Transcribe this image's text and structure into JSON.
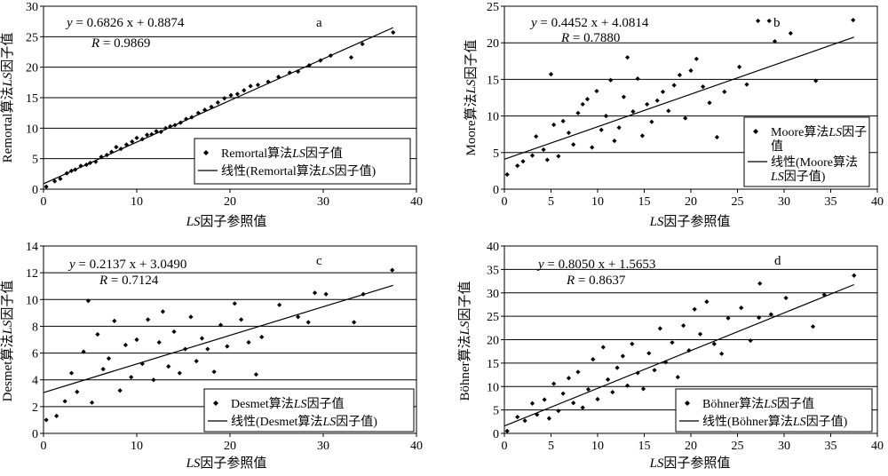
{
  "chart_data": [
    {
      "id": "a",
      "type": "scatter",
      "panel_label": "a",
      "equation_y": "y",
      "equation_rest": " = 0.6826 x + 0.8874",
      "r_label": "R",
      "r_rest": " = 0.9869",
      "xlabel_italic": "LS",
      "xlabel_rest": "因子参照值",
      "ylabel_pre": "Remortal算法",
      "ylabel_italic": "LS",
      "ylabel_post": "因子值",
      "xlim": [
        0,
        40
      ],
      "ylim": [
        0,
        30
      ],
      "xticks": [
        "0",
        "10",
        "20",
        "30",
        "40"
      ],
      "yticks": [
        "0",
        "5",
        "10",
        "15",
        "20",
        "25",
        "30"
      ],
      "legend_marker_pre": "Remortal算法",
      "legend_marker_italic": "LS",
      "legend_marker_post": "因子值",
      "legend_line_pre": "线性(Remortal算法",
      "legend_line_italic": "LS",
      "legend_line_post": "因子值)",
      "trend": {
        "slope": 0.6826,
        "intercept": 0.8874,
        "x": [
          0,
          37.5
        ]
      },
      "points": [
        [
          0.3,
          0.4
        ],
        [
          1.2,
          1.3
        ],
        [
          1.8,
          1.7
        ],
        [
          2.5,
          2.6
        ],
        [
          3.0,
          3.0
        ],
        [
          3.4,
          3.2
        ],
        [
          4.0,
          3.8
        ],
        [
          4.6,
          4.0
        ],
        [
          5.0,
          4.3
        ],
        [
          5.6,
          4.5
        ],
        [
          6.2,
          5.3
        ],
        [
          6.8,
          5.6
        ],
        [
          7.3,
          6.1
        ],
        [
          7.8,
          6.9
        ],
        [
          8.3,
          6.6
        ],
        [
          8.9,
          7.3
        ],
        [
          9.5,
          7.8
        ],
        [
          10.0,
          8.4
        ],
        [
          10.6,
          8.2
        ],
        [
          11.1,
          8.9
        ],
        [
          11.6,
          9.0
        ],
        [
          12.1,
          9.5
        ],
        [
          12.6,
          9.4
        ],
        [
          13.1,
          10.0
        ],
        [
          13.6,
          10.3
        ],
        [
          14.1,
          10.5
        ],
        [
          14.7,
          10.9
        ],
        [
          15.3,
          11.5
        ],
        [
          15.9,
          11.8
        ],
        [
          16.6,
          12.5
        ],
        [
          17.3,
          13.0
        ],
        [
          18.0,
          13.5
        ],
        [
          18.7,
          14.2
        ],
        [
          19.4,
          14.9
        ],
        [
          20.1,
          15.4
        ],
        [
          20.8,
          15.6
        ],
        [
          21.5,
          16.2
        ],
        [
          22.2,
          16.9
        ],
        [
          23.0,
          17.1
        ],
        [
          24.1,
          17.6
        ],
        [
          25.2,
          18.4
        ],
        [
          26.4,
          19.1
        ],
        [
          27.3,
          19.3
        ],
        [
          28.5,
          20.3
        ],
        [
          29.7,
          21.1
        ],
        [
          30.8,
          21.9
        ],
        [
          33.0,
          21.6
        ],
        [
          34.2,
          23.8
        ],
        [
          37.5,
          25.7
        ]
      ]
    },
    {
      "id": "b",
      "type": "scatter",
      "panel_label": "b",
      "equation_y": "y",
      "equation_rest": " = 0.4452 x + 4.0814",
      "r_label": "R",
      "r_rest": " = 0.7880",
      "xlabel_italic": "LS",
      "xlabel_rest": "因子参照值",
      "ylabel_pre": "Moore算法",
      "ylabel_italic": "LS",
      "ylabel_post": "因子值",
      "xlim": [
        0,
        40
      ],
      "ylim": [
        0,
        25
      ],
      "xticks": [
        "0",
        "5",
        "10",
        "15",
        "20",
        "25",
        "30",
        "35",
        "40"
      ],
      "yticks": [
        "0",
        "5",
        "10",
        "15",
        "20",
        "25"
      ],
      "legend_marker_pre": "Moore算法",
      "legend_marker_italic": "LS",
      "legend_marker_post": "因子",
      "legend_marker_line2": "值",
      "legend_line_pre": "线性(Moore算法",
      "legend_line_italic": "LS",
      "legend_line_post": "因子值)",
      "trend": {
        "slope": 0.4452,
        "intercept": 4.0814,
        "x": [
          0,
          37.5
        ]
      },
      "points": [
        [
          0.3,
          2.0
        ],
        [
          1.4,
          3.2
        ],
        [
          2.0,
          3.8
        ],
        [
          3.0,
          4.6
        ],
        [
          3.4,
          7.2
        ],
        [
          4.2,
          5.4
        ],
        [
          4.6,
          4.0
        ],
        [
          5.0,
          15.7
        ],
        [
          5.3,
          8.8
        ],
        [
          5.8,
          4.5
        ],
        [
          6.3,
          9.3
        ],
        [
          6.9,
          7.7
        ],
        [
          7.4,
          6.1
        ],
        [
          7.9,
          10.4
        ],
        [
          8.4,
          11.6
        ],
        [
          8.9,
          12.3
        ],
        [
          9.4,
          5.7
        ],
        [
          9.9,
          13.4
        ],
        [
          10.4,
          8.1
        ],
        [
          10.9,
          10.0
        ],
        [
          11.4,
          14.9
        ],
        [
          11.8,
          6.6
        ],
        [
          12.3,
          8.4
        ],
        [
          12.8,
          12.6
        ],
        [
          13.2,
          18.0
        ],
        [
          13.8,
          10.6
        ],
        [
          14.3,
          15.1
        ],
        [
          14.8,
          7.3
        ],
        [
          15.3,
          11.6
        ],
        [
          15.8,
          9.2
        ],
        [
          16.4,
          12.1
        ],
        [
          17.0,
          13.3
        ],
        [
          17.6,
          10.7
        ],
        [
          18.2,
          14.2
        ],
        [
          18.8,
          15.6
        ],
        [
          19.4,
          9.7
        ],
        [
          20.0,
          16.2
        ],
        [
          20.6,
          17.8
        ],
        [
          21.3,
          14.0
        ],
        [
          22.0,
          11.8
        ],
        [
          22.8,
          7.1
        ],
        [
          23.6,
          13.3
        ],
        [
          25.2,
          16.7
        ],
        [
          26.0,
          14.3
        ],
        [
          27.2,
          23.0
        ],
        [
          28.4,
          23.0
        ],
        [
          29.0,
          20.2
        ],
        [
          30.7,
          21.3
        ],
        [
          33.4,
          14.8
        ],
        [
          37.4,
          23.1
        ]
      ]
    },
    {
      "id": "c",
      "type": "scatter",
      "panel_label": "c",
      "equation_y": "y",
      "equation_rest": " = 0.2137 x + 3.0490",
      "r_label": "R",
      "r_rest": " = 0.7124",
      "xlabel_italic": "LS",
      "xlabel_rest": "因子参照值",
      "ylabel_pre": "Desmet算法",
      "ylabel_italic": "LS",
      "ylabel_post": "因子值",
      "xlim": [
        0,
        40
      ],
      "ylim": [
        0,
        14
      ],
      "xticks": [
        "0",
        "10",
        "20",
        "30",
        "40"
      ],
      "yticks": [
        "0",
        "2",
        "4",
        "6",
        "8",
        "10",
        "12",
        "14"
      ],
      "legend_marker_pre": "Desmet算法",
      "legend_marker_italic": "LS",
      "legend_marker_post": "因子值",
      "legend_line_pre": "线性(Desmet算法",
      "legend_line_italic": "LS",
      "legend_line_post": "因子值)",
      "trend": {
        "slope": 0.2137,
        "intercept": 3.049,
        "x": [
          0,
          37.5
        ]
      },
      "points": [
        [
          0.3,
          1.0
        ],
        [
          1.4,
          1.3
        ],
        [
          2.3,
          2.4
        ],
        [
          3.0,
          4.5
        ],
        [
          3.6,
          3.1
        ],
        [
          4.3,
          6.1
        ],
        [
          4.8,
          9.9
        ],
        [
          5.2,
          2.3
        ],
        [
          5.8,
          7.4
        ],
        [
          6.4,
          4.8
        ],
        [
          7.0,
          5.6
        ],
        [
          7.6,
          8.4
        ],
        [
          8.2,
          3.2
        ],
        [
          8.8,
          6.6
        ],
        [
          9.4,
          4.2
        ],
        [
          10.0,
          7.0
        ],
        [
          10.6,
          5.2
        ],
        [
          11.2,
          8.5
        ],
        [
          11.8,
          4.0
        ],
        [
          12.4,
          6.8
        ],
        [
          12.8,
          9.1
        ],
        [
          13.4,
          5.0
        ],
        [
          14.0,
          7.6
        ],
        [
          14.6,
          4.5
        ],
        [
          15.2,
          6.3
        ],
        [
          15.8,
          8.7
        ],
        [
          16.4,
          5.4
        ],
        [
          17.0,
          7.1
        ],
        [
          17.6,
          6.3
        ],
        [
          18.3,
          4.6
        ],
        [
          19.0,
          8.1
        ],
        [
          19.7,
          6.5
        ],
        [
          20.5,
          9.7
        ],
        [
          21.2,
          8.5
        ],
        [
          22.0,
          6.8
        ],
        [
          22.8,
          4.4
        ],
        [
          23.4,
          7.2
        ],
        [
          25.3,
          9.6
        ],
        [
          27.3,
          8.7
        ],
        [
          28.4,
          8.3
        ],
        [
          29.1,
          10.5
        ],
        [
          30.3,
          10.4
        ],
        [
          33.3,
          8.3
        ],
        [
          34.3,
          10.4
        ],
        [
          37.4,
          12.2
        ]
      ]
    },
    {
      "id": "d",
      "type": "scatter",
      "panel_label": "d",
      "equation_y": "y",
      "equation_rest": " = 0.8050 x + 1.5653",
      "r_label": "R",
      "r_rest": " = 0.8637",
      "xlabel_italic": "LS",
      "xlabel_rest": "因子参照值",
      "ylabel_pre": "Böhner算法",
      "ylabel_italic": "LS",
      "ylabel_post": "因子值",
      "xlim": [
        0,
        40
      ],
      "ylim": [
        0,
        40
      ],
      "xticks": [
        "0",
        "5",
        "10",
        "15",
        "20",
        "25",
        "30",
        "35",
        "40"
      ],
      "yticks": [
        "0",
        "5",
        "10",
        "15",
        "20",
        "25",
        "30",
        "35",
        "40"
      ],
      "legend_marker_pre": "Böhner算法",
      "legend_marker_italic": "LS",
      "legend_marker_post": "因子值",
      "legend_line_pre": "线性(Böhner算法",
      "legend_line_italic": "LS",
      "legend_line_post": "因子值)",
      "trend": {
        "slope": 0.805,
        "intercept": 1.5653,
        "x": [
          0,
          37.5
        ]
      },
      "points": [
        [
          0.3,
          0.5
        ],
        [
          1.4,
          3.5
        ],
        [
          2.2,
          2.7
        ],
        [
          3.0,
          6.4
        ],
        [
          3.5,
          4.0
        ],
        [
          4.3,
          7.2
        ],
        [
          4.8,
          3.2
        ],
        [
          5.3,
          10.6
        ],
        [
          5.8,
          4.8
        ],
        [
          6.3,
          8.5
        ],
        [
          6.9,
          11.8
        ],
        [
          7.4,
          6.5
        ],
        [
          7.9,
          13.1
        ],
        [
          8.4,
          5.5
        ],
        [
          9.0,
          9.4
        ],
        [
          9.5,
          15.8
        ],
        [
          10.0,
          7.3
        ],
        [
          10.6,
          18.4
        ],
        [
          11.1,
          11.5
        ],
        [
          11.6,
          8.8
        ],
        [
          12.1,
          14.0
        ],
        [
          12.7,
          16.5
        ],
        [
          13.2,
          10.2
        ],
        [
          13.7,
          19.1
        ],
        [
          14.3,
          12.9
        ],
        [
          14.9,
          9.5
        ],
        [
          15.5,
          17.1
        ],
        [
          16.1,
          13.5
        ],
        [
          16.7,
          22.4
        ],
        [
          17.3,
          15.2
        ],
        [
          18.0,
          19.4
        ],
        [
          18.6,
          12.0
        ],
        [
          19.2,
          23.0
        ],
        [
          19.8,
          17.7
        ],
        [
          20.4,
          26.5
        ],
        [
          21.0,
          21.2
        ],
        [
          21.7,
          28.1
        ],
        [
          22.5,
          19.1
        ],
        [
          23.3,
          17.0
        ],
        [
          24.0,
          24.6
        ],
        [
          25.4,
          26.8
        ],
        [
          26.4,
          19.8
        ],
        [
          27.3,
          24.7
        ],
        [
          27.4,
          32.0
        ],
        [
          28.6,
          25.4
        ],
        [
          30.2,
          28.9
        ],
        [
          33.1,
          22.8
        ],
        [
          34.3,
          29.6
        ],
        [
          37.5,
          33.7
        ]
      ]
    }
  ]
}
